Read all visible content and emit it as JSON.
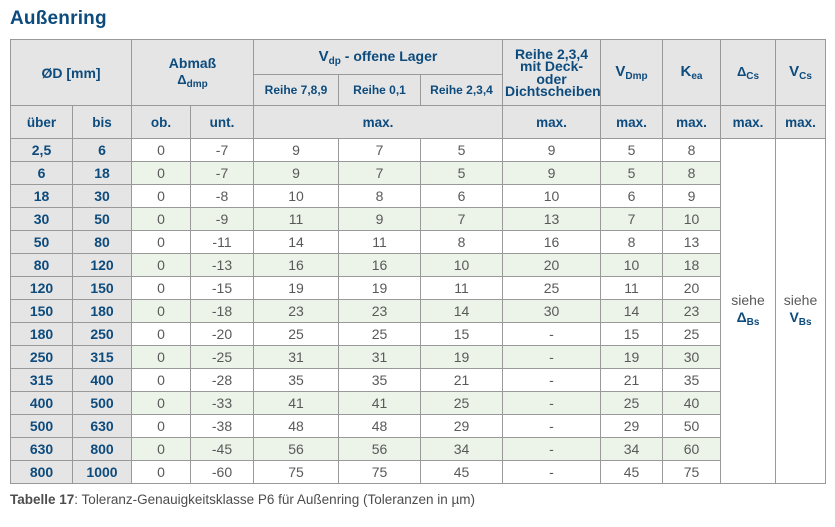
{
  "title": "Außenring",
  "caption": {
    "label": "Tabelle 17",
    "text": ": Toleranz-Genauigkeitsklasse P6 für Außenring (Toleranzen in µm)"
  },
  "colors": {
    "accent_blue": "#0d4b7d",
    "header_bg": "#e5e5e5",
    "row_alt_green": "#ecf4ea",
    "border_gray": "#999999",
    "value_gray": "#595959"
  },
  "header": {
    "diameter": "ØD [mm]",
    "abmass": {
      "line1": "Abmaß",
      "symbol": "Δ",
      "subscript": "dmp"
    },
    "vdp": {
      "symbol": "V",
      "subscript": "dp",
      "suffix": "-  offene Lager"
    },
    "reihe_cols": [
      "Reihe 7,8,9",
      "Reihe 0,1",
      "Reihe 2,3,4"
    ],
    "deck_lines": [
      "Reihe 2,3,4",
      "mit Deck- oder",
      "Dichtscheiben"
    ],
    "vdmp": {
      "symbol": "V",
      "subscript": "Dmp"
    },
    "kea": {
      "symbol": "K",
      "subscript": "ea"
    },
    "delta_cs": {
      "symbol": "Δ",
      "subscript": "Cs"
    },
    "vcs": {
      "symbol": "V",
      "subscript": "Cs"
    },
    "sub_row": {
      "ueber": "über",
      "bis": "bis",
      "ob": "ob.",
      "unt": "unt.",
      "max": "max."
    }
  },
  "see_also": {
    "delta_bs": {
      "word": "siehe",
      "symbol": "Δ",
      "subscript": "Bs"
    },
    "v_bs": {
      "word": "siehe",
      "symbol": "V",
      "subscript": "Bs"
    }
  },
  "rows": [
    {
      "ueber": "2,5",
      "bis": "6",
      "ob": "0",
      "unt": "-7",
      "reihe789": "9",
      "reihe01": "7",
      "reihe234": "5",
      "deck": "9",
      "vdmp": "5",
      "kea": "8"
    },
    {
      "ueber": "6",
      "bis": "18",
      "ob": "0",
      "unt": "-7",
      "reihe789": "9",
      "reihe01": "7",
      "reihe234": "5",
      "deck": "9",
      "vdmp": "5",
      "kea": "8"
    },
    {
      "ueber": "18",
      "bis": "30",
      "ob": "0",
      "unt": "-8",
      "reihe789": "10",
      "reihe01": "8",
      "reihe234": "6",
      "deck": "10",
      "vdmp": "6",
      "kea": "9"
    },
    {
      "ueber": "30",
      "bis": "50",
      "ob": "0",
      "unt": "-9",
      "reihe789": "11",
      "reihe01": "9",
      "reihe234": "7",
      "deck": "13",
      "vdmp": "7",
      "kea": "10"
    },
    {
      "ueber": "50",
      "bis": "80",
      "ob": "0",
      "unt": "-11",
      "reihe789": "14",
      "reihe01": "11",
      "reihe234": "8",
      "deck": "16",
      "vdmp": "8",
      "kea": "13"
    },
    {
      "ueber": "80",
      "bis": "120",
      "ob": "0",
      "unt": "-13",
      "reihe789": "16",
      "reihe01": "16",
      "reihe234": "10",
      "deck": "20",
      "vdmp": "10",
      "kea": "18"
    },
    {
      "ueber": "120",
      "bis": "150",
      "ob": "0",
      "unt": "-15",
      "reihe789": "19",
      "reihe01": "19",
      "reihe234": "11",
      "deck": "25",
      "vdmp": "11",
      "kea": "20"
    },
    {
      "ueber": "150",
      "bis": "180",
      "ob": "0",
      "unt": "-18",
      "reihe789": "23",
      "reihe01": "23",
      "reihe234": "14",
      "deck": "30",
      "vdmp": "14",
      "kea": "23"
    },
    {
      "ueber": "180",
      "bis": "250",
      "ob": "0",
      "unt": "-20",
      "reihe789": "25",
      "reihe01": "25",
      "reihe234": "15",
      "deck": "-",
      "vdmp": "15",
      "kea": "25"
    },
    {
      "ueber": "250",
      "bis": "315",
      "ob": "0",
      "unt": "-25",
      "reihe789": "31",
      "reihe01": "31",
      "reihe234": "19",
      "deck": "-",
      "vdmp": "19",
      "kea": "30"
    },
    {
      "ueber": "315",
      "bis": "400",
      "ob": "0",
      "unt": "-28",
      "reihe789": "35",
      "reihe01": "35",
      "reihe234": "21",
      "deck": "-",
      "vdmp": "21",
      "kea": "35"
    },
    {
      "ueber": "400",
      "bis": "500",
      "ob": "0",
      "unt": "-33",
      "reihe789": "41",
      "reihe01": "41",
      "reihe234": "25",
      "deck": "-",
      "vdmp": "25",
      "kea": "40"
    },
    {
      "ueber": "500",
      "bis": "630",
      "ob": "0",
      "unt": "-38",
      "reihe789": "48",
      "reihe01": "48",
      "reihe234": "29",
      "deck": "-",
      "vdmp": "29",
      "kea": "50"
    },
    {
      "ueber": "630",
      "bis": "800",
      "ob": "0",
      "unt": "-45",
      "reihe789": "56",
      "reihe01": "56",
      "reihe234": "34",
      "deck": "-",
      "vdmp": "34",
      "kea": "60"
    },
    {
      "ueber": "800",
      "bis": "1000",
      "ob": "0",
      "unt": "-60",
      "reihe789": "75",
      "reihe01": "75",
      "reihe234": "45",
      "deck": "-",
      "vdmp": "45",
      "kea": "75"
    }
  ]
}
